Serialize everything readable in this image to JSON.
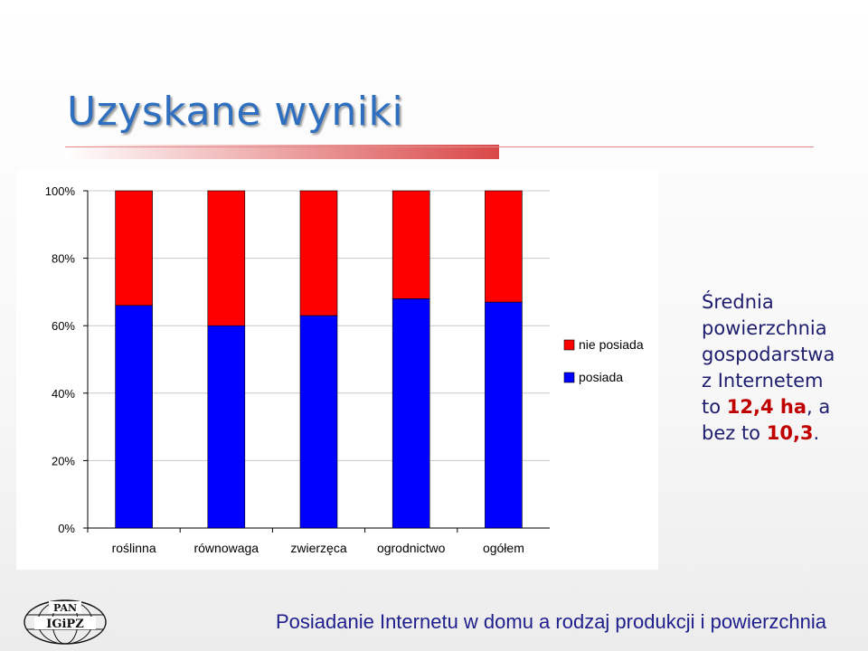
{
  "slide": {
    "title": "Uzyskane wyniki",
    "note": {
      "line1": "Średnia",
      "line2": "powierzchnia",
      "line3": "gospodarstwa",
      "line4": "z Internetem",
      "line5_prefix": "to ",
      "value_with": "12,4 ha",
      "line5_suffix": ", a",
      "line6_prefix": "bez to ",
      "value_without": "10,3",
      "line6_suffix": "."
    },
    "footer": {
      "caption": "Posiadanie Internetu w domu a rodzaj produkcji i powierzchnia",
      "logo_text_top": "PAN",
      "logo_text_main": "IGiPZ"
    }
  },
  "chart_data": {
    "type": "bar",
    "stacked": "percent",
    "categories": [
      "roślinna",
      "równowaga",
      "zwierzęca",
      "ogrodnictwo",
      "ogółem"
    ],
    "series": [
      {
        "name": "posiada",
        "color": "#0000ff",
        "values": [
          66,
          60,
          63,
          68,
          67
        ]
      },
      {
        "name": "nie posiada",
        "color": "#ff0000",
        "values": [
          34,
          40,
          37,
          32,
          33
        ]
      }
    ],
    "ylim": [
      0,
      100
    ],
    "yticks": [
      "0%",
      "20%",
      "40%",
      "60%",
      "80%",
      "100%"
    ],
    "grid": true,
    "legend": {
      "position": "right",
      "order": [
        "nie posiada",
        "posiada"
      ]
    }
  }
}
